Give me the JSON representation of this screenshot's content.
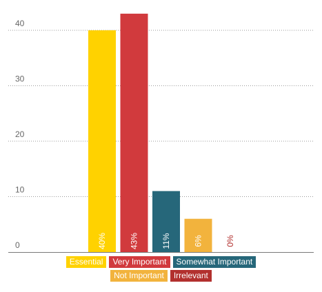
{
  "chart_data": {
    "type": "bar",
    "categories": [
      "Essential",
      "Very Important",
      "Somewhat Important",
      "Not Important",
      "Irrelevant"
    ],
    "values": [
      40,
      43,
      11,
      6,
      0
    ],
    "data_labels": [
      "40%",
      "43%",
      "11%",
      "6%",
      "0%"
    ],
    "colors": [
      "#FFD200",
      "#D13A3D",
      "#26677A",
      "#F2B33D",
      "#B2302E"
    ],
    "yticks": [
      "0",
      "10",
      "20",
      "30",
      "40"
    ],
    "ylim": [
      0,
      45
    ],
    "grid": true,
    "legend_position": "bottom",
    "legend": {
      "row1": [
        "Essential",
        "Very Important",
        "Somewhat Important"
      ],
      "row2": [
        "Not Important",
        "Irrelevant"
      ]
    }
  }
}
